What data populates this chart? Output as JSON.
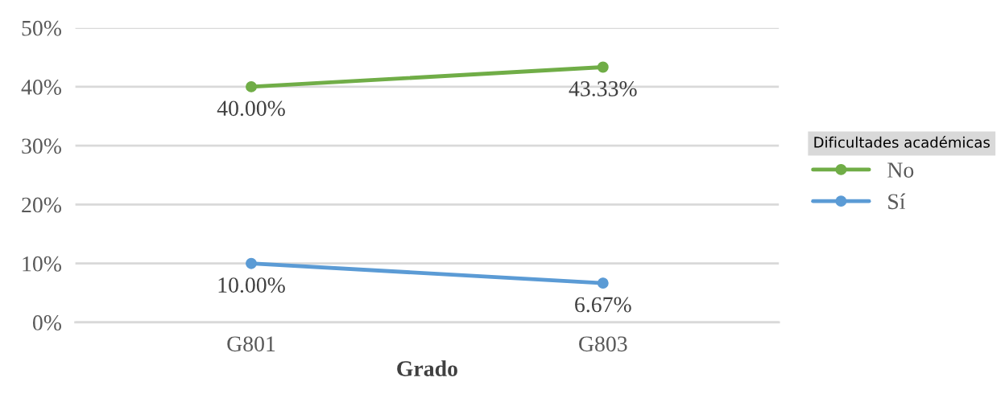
{
  "chart_data": {
    "type": "line",
    "xlabel": "Grado",
    "legend_title": "Dificultades académicas",
    "categories": [
      "G801",
      "G803"
    ],
    "series": [
      {
        "name": "No",
        "color": "#70ad47",
        "values": [
          40.0,
          43.33
        ],
        "value_labels": [
          "40.00%",
          "43.33%"
        ]
      },
      {
        "name": "Sí",
        "color": "#5b9bd5",
        "values": [
          10.0,
          6.67
        ],
        "value_labels": [
          "10.00%",
          "6.67%"
        ]
      }
    ],
    "ylim": [
      0,
      50
    ],
    "yticks": [
      {
        "value": 0,
        "label": "0%"
      },
      {
        "value": 10,
        "label": "10%"
      },
      {
        "value": 20,
        "label": "20%"
      },
      {
        "value": 30,
        "label": "30%"
      },
      {
        "value": 40,
        "label": "40%"
      },
      {
        "value": 50,
        "label": "50%"
      }
    ],
    "grid": "y",
    "legend": "right",
    "marker": "circle",
    "line_style": "solid"
  }
}
